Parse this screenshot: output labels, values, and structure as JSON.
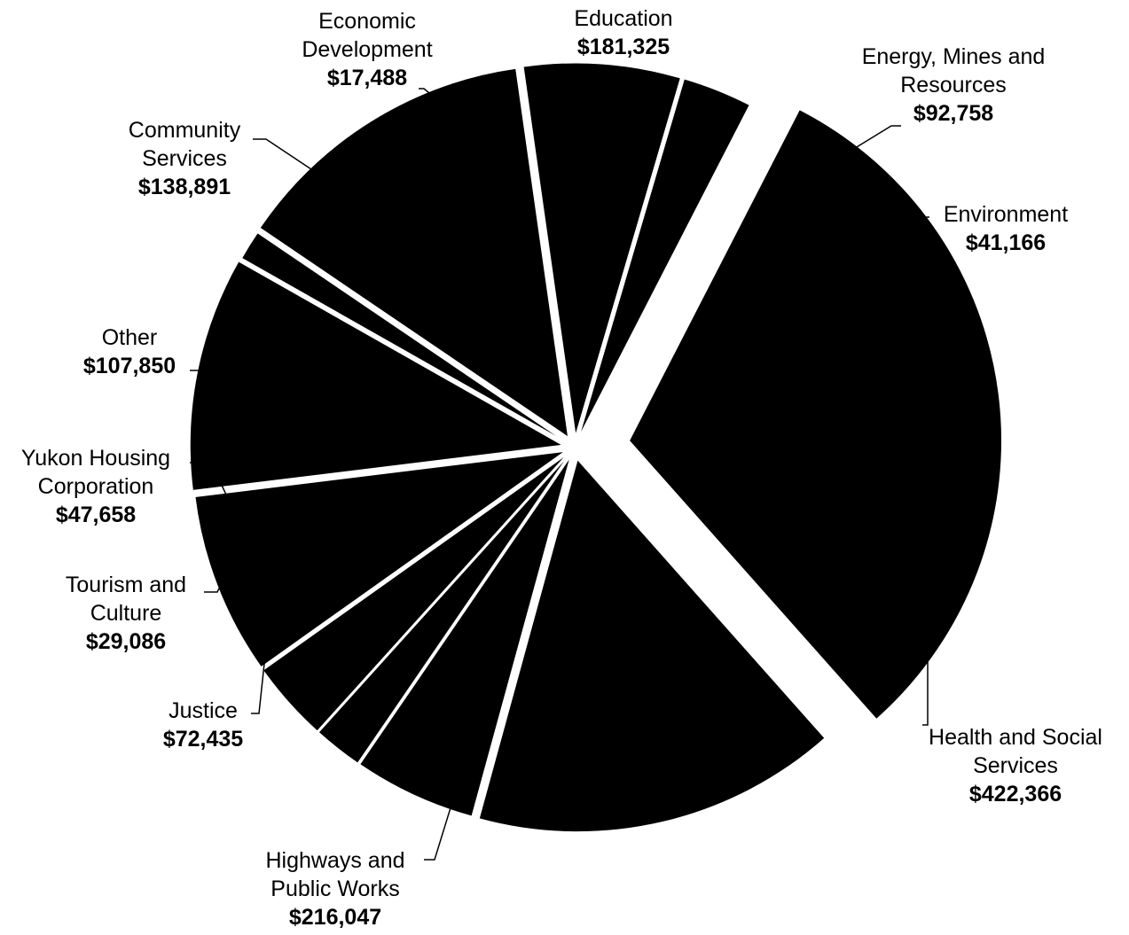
{
  "chart_data": {
    "type": "pie",
    "title": "",
    "exploded": true,
    "start_angle_deg": -62.8,
    "direction": "clockwise",
    "colors": {
      "slice": "#000000",
      "background": "#ffffff",
      "text": "#000000"
    },
    "slices": [
      {
        "label_lines": [
          "Health and Social",
          "Services"
        ],
        "value": 422366,
        "value_label": "$422,366"
      },
      {
        "label_lines": [
          "Highways and",
          "Public Works"
        ],
        "value": 216047,
        "value_label": "$216,047"
      },
      {
        "label_lines": [
          "Justice"
        ],
        "value": 72435,
        "value_label": "$72,435"
      },
      {
        "label_lines": [
          "Tourism and",
          "Culture"
        ],
        "value": 29086,
        "value_label": "$29,086"
      },
      {
        "label_lines": [
          "Yukon Housing",
          "Corporation"
        ],
        "value": 47658,
        "value_label": "$47,658"
      },
      {
        "label_lines": [
          "Other"
        ],
        "value": 107850,
        "value_label": "$107,850"
      },
      {
        "label_lines": [
          "Community",
          "Services"
        ],
        "value": 138891,
        "value_label": "$138,891"
      },
      {
        "label_lines": [
          "Economic",
          "Development"
        ],
        "value": 17488,
        "value_label": "$17,488"
      },
      {
        "label_lines": [
          "Education"
        ],
        "value": 181325,
        "value_label": "$181,325"
      },
      {
        "label_lines": [
          "Energy, Mines and",
          "Resources"
        ],
        "value": 92758,
        "value_label": "$92,758"
      },
      {
        "label_lines": [
          "Environment"
        ],
        "value": 41166,
        "value_label": "$41,166"
      }
    ]
  }
}
